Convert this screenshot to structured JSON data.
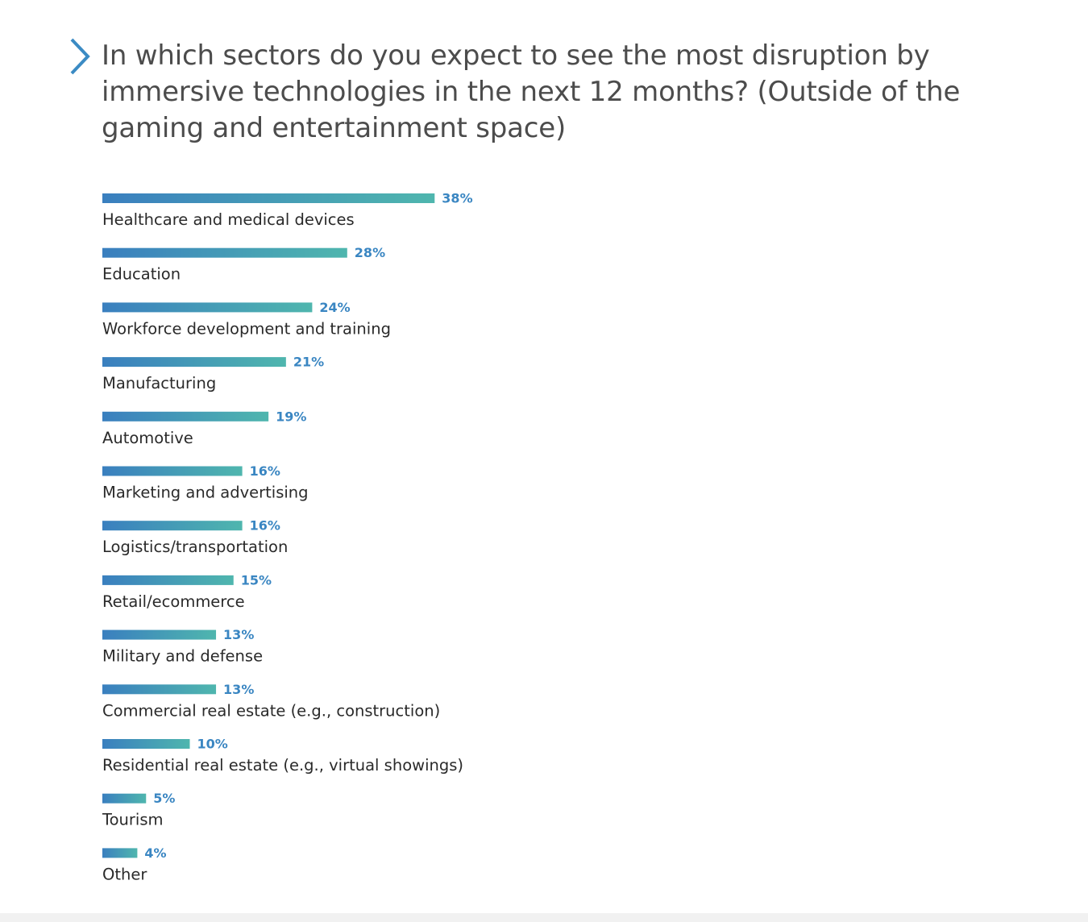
{
  "title": "In which sectors do you expect to see the most disruption by immersive technologies in the next 12 months? (Outside of the gaming and entertainment space)",
  "icons": {
    "title_marker": "chevron-right-icon"
  },
  "colors": {
    "accent": "#3b8bc4",
    "bar_start": "#3a7fbf",
    "bar_end": "#4fb6ae",
    "value_label": "#3a86c2",
    "category_label": "#2a2a2a",
    "title": "#4c4c4c"
  },
  "chart_data": {
    "type": "bar",
    "orientation": "horizontal",
    "categories": [
      "Healthcare and medical devices",
      "Education",
      "Workforce development and training",
      "Manufacturing",
      "Automotive",
      "Marketing and advertising",
      "Logistics/transportation",
      "Retail/ecommerce",
      "Military and defense",
      "Commercial real estate (e.g., construction)",
      "Residential real estate (e.g., virtual showings)",
      "Tourism",
      "Other"
    ],
    "values": [
      38,
      28,
      24,
      21,
      19,
      16,
      16,
      15,
      13,
      13,
      10,
      5,
      4
    ],
    "value_labels": [
      "38%",
      "28%",
      "24%",
      "21%",
      "19%",
      "16%",
      "16%",
      "15%",
      "13%",
      "13%",
      "10%",
      "5%",
      "4%"
    ],
    "unit": "%",
    "grid": false,
    "legend": "none"
  }
}
